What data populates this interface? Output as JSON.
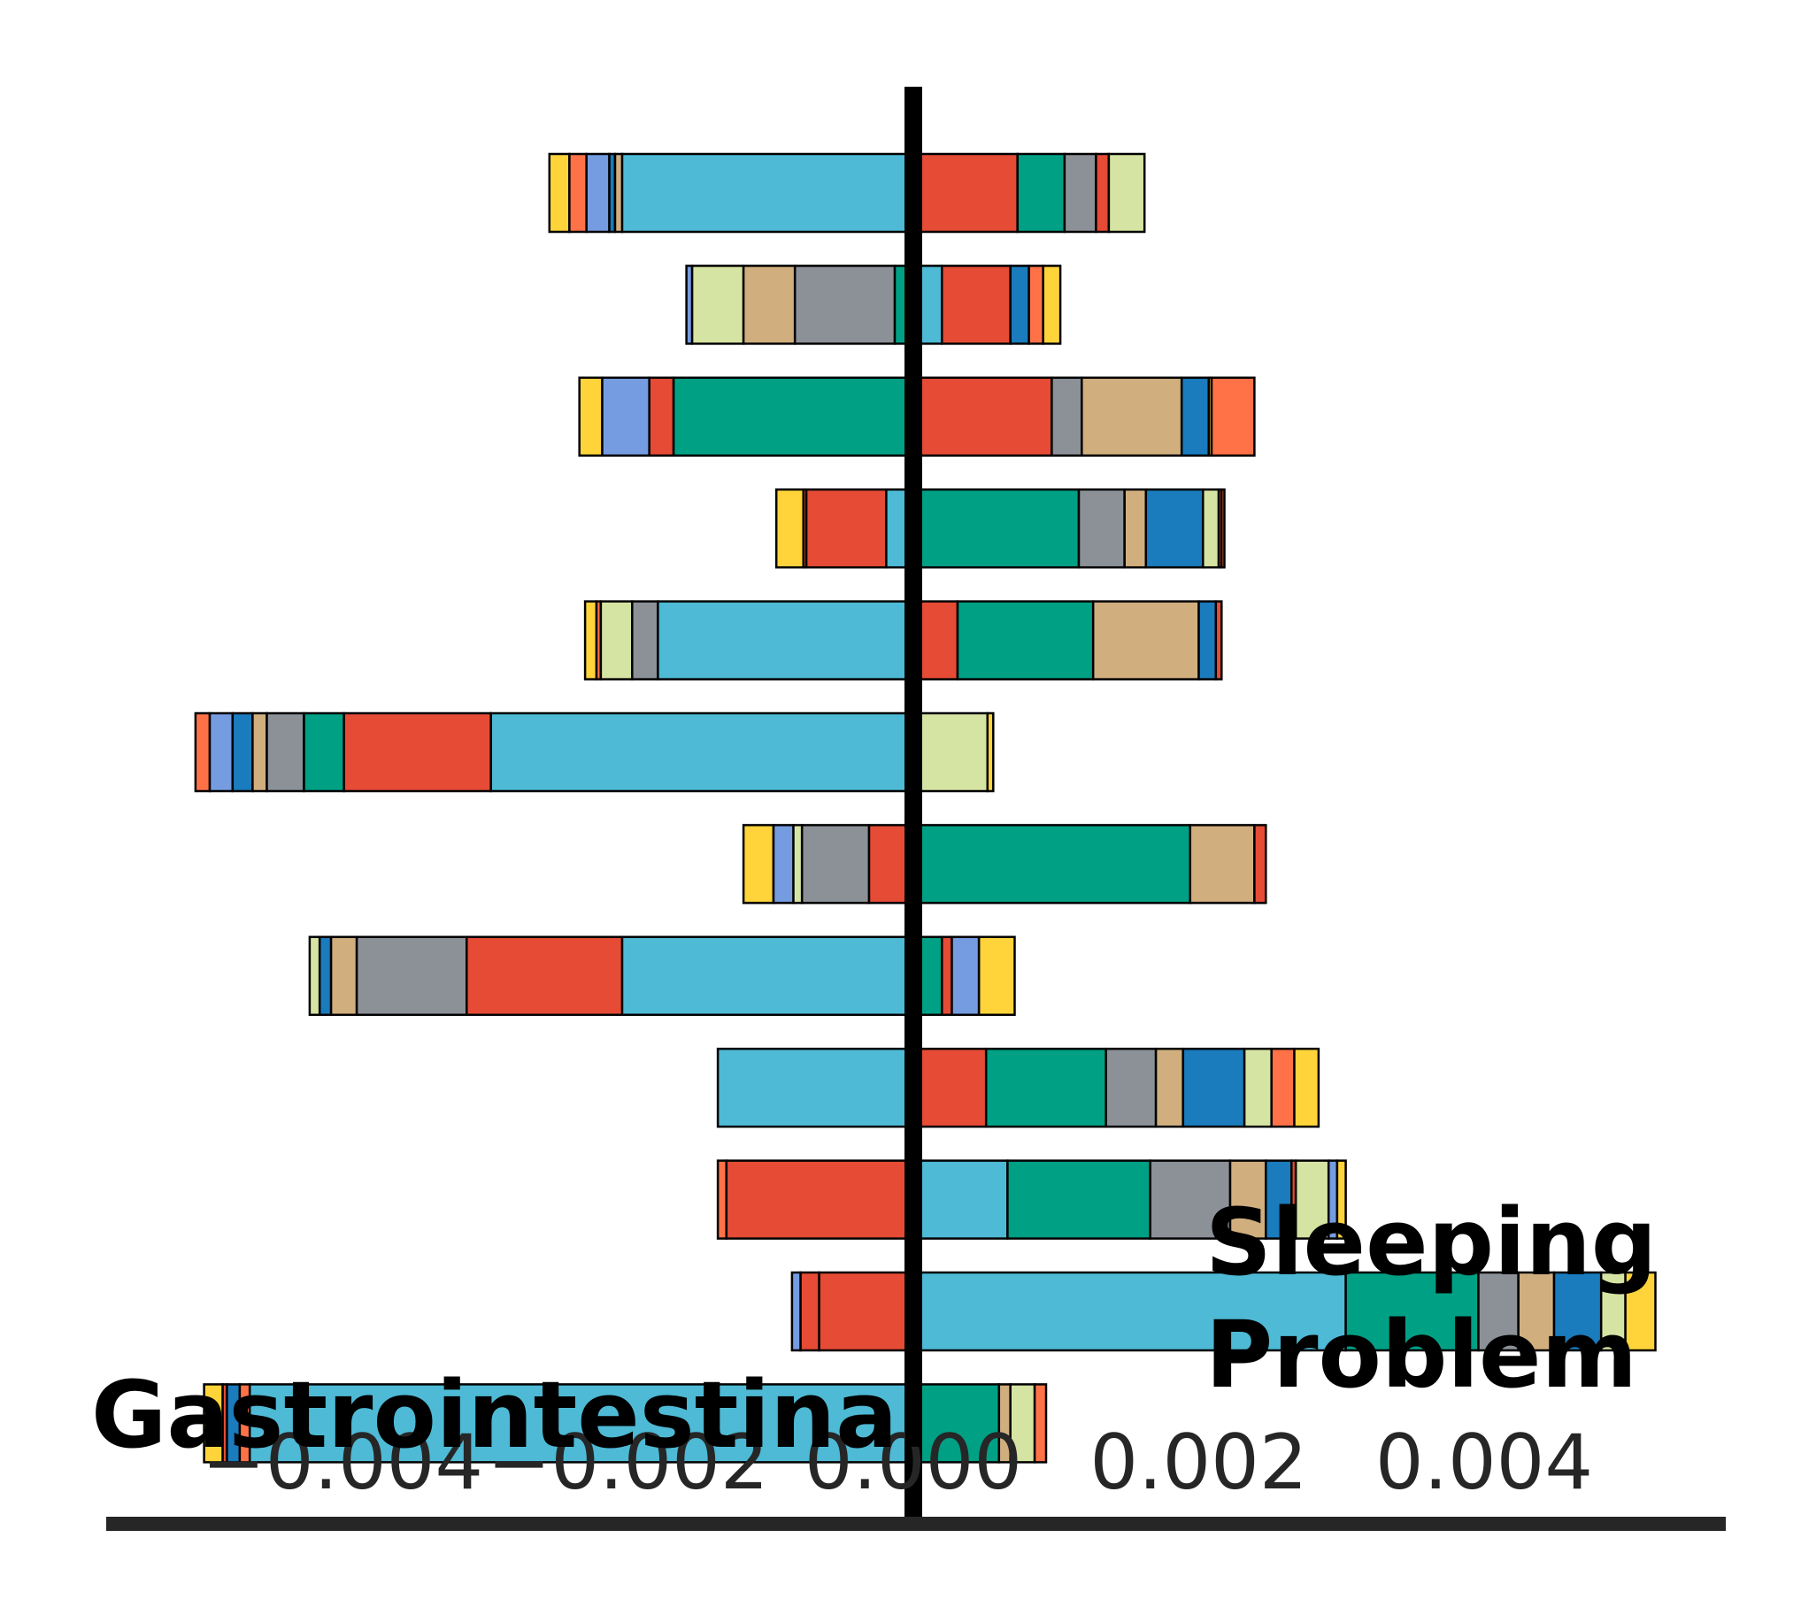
{
  "chart_data": {
    "type": "bar",
    "orientation": "horizontal",
    "stacked": "diverging",
    "xlim": [
      -0.0052,
      0.0056
    ],
    "xticks": [
      {
        "value": -0.004,
        "label": "−0.004"
      },
      {
        "value": -0.002,
        "label": "−0.002"
      },
      {
        "value": 0.0,
        "label": "0.000"
      },
      {
        "value": 0.002,
        "label": "0.002"
      },
      {
        "value": 0.004,
        "label": "0.004"
      }
    ],
    "left_label": "Gastrointestinal",
    "right_label": "Sleeping\nProblem",
    "grid": false,
    "legend": "none",
    "colors": [
      "#ffd43b",
      "#ff7247",
      "#759ce0",
      "#d1ae7e",
      "#4ebad5",
      "#e54b35",
      "#00a085",
      "#8b9197",
      "#1a7bbd",
      "#d6e4a3"
    ],
    "rows": [
      {
        "segments": [
          [
            -0.00255,
            -0.00241,
            0
          ],
          [
            -0.00241,
            -0.00229,
            1
          ],
          [
            -0.00229,
            -0.00213,
            2
          ],
          [
            -0.00213,
            -0.00209,
            8
          ],
          [
            -0.00209,
            -0.00204,
            3
          ],
          [
            -0.00204,
            0.0,
            4
          ],
          [
            0.0,
            0.00073,
            5
          ],
          [
            0.00073,
            0.00106,
            6
          ],
          [
            0.00106,
            0.00128,
            7
          ],
          [
            0.00128,
            0.00137,
            5
          ],
          [
            0.00137,
            0.00162,
            9
          ]
        ]
      },
      {
        "segments": [
          [
            -0.00159,
            -0.00155,
            2
          ],
          [
            -0.00155,
            -0.00119,
            9
          ],
          [
            -0.00119,
            -0.00083,
            3
          ],
          [
            -0.00083,
            -0.00013,
            7
          ],
          [
            -0.00013,
            0.0,
            6
          ],
          [
            0.0,
            0.0002,
            4
          ],
          [
            0.0002,
            0.00068,
            5
          ],
          [
            0.00068,
            0.00081,
            8
          ],
          [
            0.00081,
            0.00091,
            1
          ],
          [
            0.00091,
            0.00103,
            0
          ]
        ]
      },
      {
        "segments": [
          [
            -0.00234,
            -0.00218,
            0
          ],
          [
            -0.00218,
            -0.00185,
            2
          ],
          [
            -0.00185,
            -0.00168,
            5
          ],
          [
            -0.00168,
            0.0,
            6
          ],
          [
            0.0,
            0.00097,
            5
          ],
          [
            0.00097,
            0.00118,
            7
          ],
          [
            0.00118,
            0.00188,
            3
          ],
          [
            0.00188,
            0.00207,
            8
          ],
          [
            0.00207,
            0.00209,
            0
          ],
          [
            0.00209,
            0.00239,
            1
          ]
        ]
      },
      {
        "segments": [
          [
            -0.00096,
            -0.00077,
            0
          ],
          [
            -0.00077,
            -0.00075,
            1
          ],
          [
            -0.00075,
            -0.00019,
            5
          ],
          [
            -0.00019,
            0.0,
            4
          ],
          [
            0.0,
            0.00116,
            6
          ],
          [
            0.00116,
            0.00148,
            7
          ],
          [
            0.00148,
            0.00163,
            3
          ],
          [
            0.00163,
            0.00203,
            8
          ],
          [
            0.00203,
            0.00214,
            9
          ],
          [
            0.00214,
            0.00216,
            5
          ],
          [
            0.00216,
            0.00218,
            1
          ]
        ]
      },
      {
        "segments": [
          [
            -0.0023,
            -0.00222,
            0
          ],
          [
            -0.00222,
            -0.00219,
            1
          ],
          [
            -0.00219,
            -0.00197,
            9
          ],
          [
            -0.00197,
            -0.00179,
            7
          ],
          [
            -0.00179,
            0.0,
            4
          ],
          [
            0.0,
            0.00031,
            5
          ],
          [
            0.00031,
            0.00126,
            6
          ],
          [
            0.00126,
            0.002,
            3
          ],
          [
            0.002,
            0.00212,
            8
          ],
          [
            0.00212,
            0.00216,
            5
          ]
        ]
      },
      {
        "segments": [
          [
            -0.00503,
            -0.00493,
            1
          ],
          [
            -0.00493,
            -0.00477,
            2
          ],
          [
            -0.00477,
            -0.00463,
            8
          ],
          [
            -0.00463,
            -0.00453,
            3
          ],
          [
            -0.00453,
            -0.00427,
            7
          ],
          [
            -0.00427,
            -0.00399,
            6
          ],
          [
            -0.00399,
            -0.00296,
            5
          ],
          [
            -0.00296,
            0.0,
            4
          ],
          [
            0.0,
            0.00052,
            9
          ],
          [
            0.00052,
            0.00056,
            0
          ]
        ]
      },
      {
        "segments": [
          [
            -0.00119,
            -0.00098,
            0
          ],
          [
            -0.00098,
            -0.00084,
            2
          ],
          [
            -0.00084,
            -0.00078,
            9
          ],
          [
            -0.00078,
            -0.00031,
            7
          ],
          [
            -0.00031,
            0.0,
            5
          ],
          [
            0.0,
            0.00194,
            6
          ],
          [
            0.00194,
            0.00239,
            3
          ],
          [
            0.00239,
            0.00247,
            5
          ]
        ]
      },
      {
        "segments": [
          [
            -0.00423,
            -0.00416,
            9
          ],
          [
            -0.00416,
            -0.00408,
            8
          ],
          [
            -0.00408,
            -0.0039,
            3
          ],
          [
            -0.0039,
            -0.00313,
            7
          ],
          [
            -0.00313,
            -0.00204,
            5
          ],
          [
            -0.00204,
            0.0,
            4
          ],
          [
            0.0,
            0.0002,
            6
          ],
          [
            0.0002,
            0.00027,
            5
          ],
          [
            0.00027,
            0.00046,
            2
          ],
          [
            0.00046,
            0.00071,
            0
          ]
        ]
      },
      {
        "segments": [
          [
            -0.00137,
            0.0,
            4
          ],
          [
            0.0,
            0.00051,
            5
          ],
          [
            0.00051,
            0.00135,
            6
          ],
          [
            0.00135,
            0.0017,
            7
          ],
          [
            0.0017,
            0.00189,
            3
          ],
          [
            0.00189,
            0.00232,
            8
          ],
          [
            0.00232,
            0.00251,
            9
          ],
          [
            0.00251,
            0.00267,
            1
          ],
          [
            0.00267,
            0.00284,
            0
          ]
        ]
      },
      {
        "segments": [
          [
            -0.00137,
            -0.00131,
            1
          ],
          [
            -0.00131,
            0.0,
            5
          ],
          [
            0.0,
            0.00066,
            4
          ],
          [
            0.00066,
            0.00166,
            6
          ],
          [
            0.00166,
            0.00222,
            7
          ],
          [
            0.00222,
            0.00247,
            3
          ],
          [
            0.00247,
            0.00265,
            8
          ],
          [
            0.00265,
            0.00268,
            5
          ],
          [
            0.00268,
            0.00291,
            9
          ],
          [
            0.00291,
            0.00297,
            2
          ],
          [
            0.00297,
            0.00303,
            0
          ]
        ]
      },
      {
        "segments": [
          [
            -0.00085,
            -0.00079,
            2
          ],
          [
            -0.00079,
            -0.00066,
            5
          ],
          [
            -0.00066,
            0.0,
            5
          ],
          [
            0.0,
            0.00303,
            4
          ],
          [
            0.00303,
            0.00396,
            6
          ],
          [
            0.00396,
            0.00424,
            7
          ],
          [
            0.00424,
            0.00449,
            3
          ],
          [
            0.00449,
            0.00482,
            8
          ],
          [
            0.00482,
            0.00499,
            9
          ],
          [
            0.00499,
            0.0052,
            0
          ]
        ]
      },
      {
        "segments": [
          [
            -0.00497,
            -0.00484,
            0
          ],
          [
            -0.00484,
            -0.00481,
            5
          ],
          [
            -0.00481,
            -0.00472,
            8
          ],
          [
            -0.00472,
            -0.00465,
            1
          ],
          [
            -0.00465,
            0.0,
            4
          ],
          [
            0.0,
            0.0006,
            6
          ],
          [
            0.0006,
            0.00068,
            3
          ],
          [
            0.00068,
            0.00085,
            9
          ],
          [
            0.00085,
            0.00093,
            1
          ]
        ]
      }
    ]
  }
}
